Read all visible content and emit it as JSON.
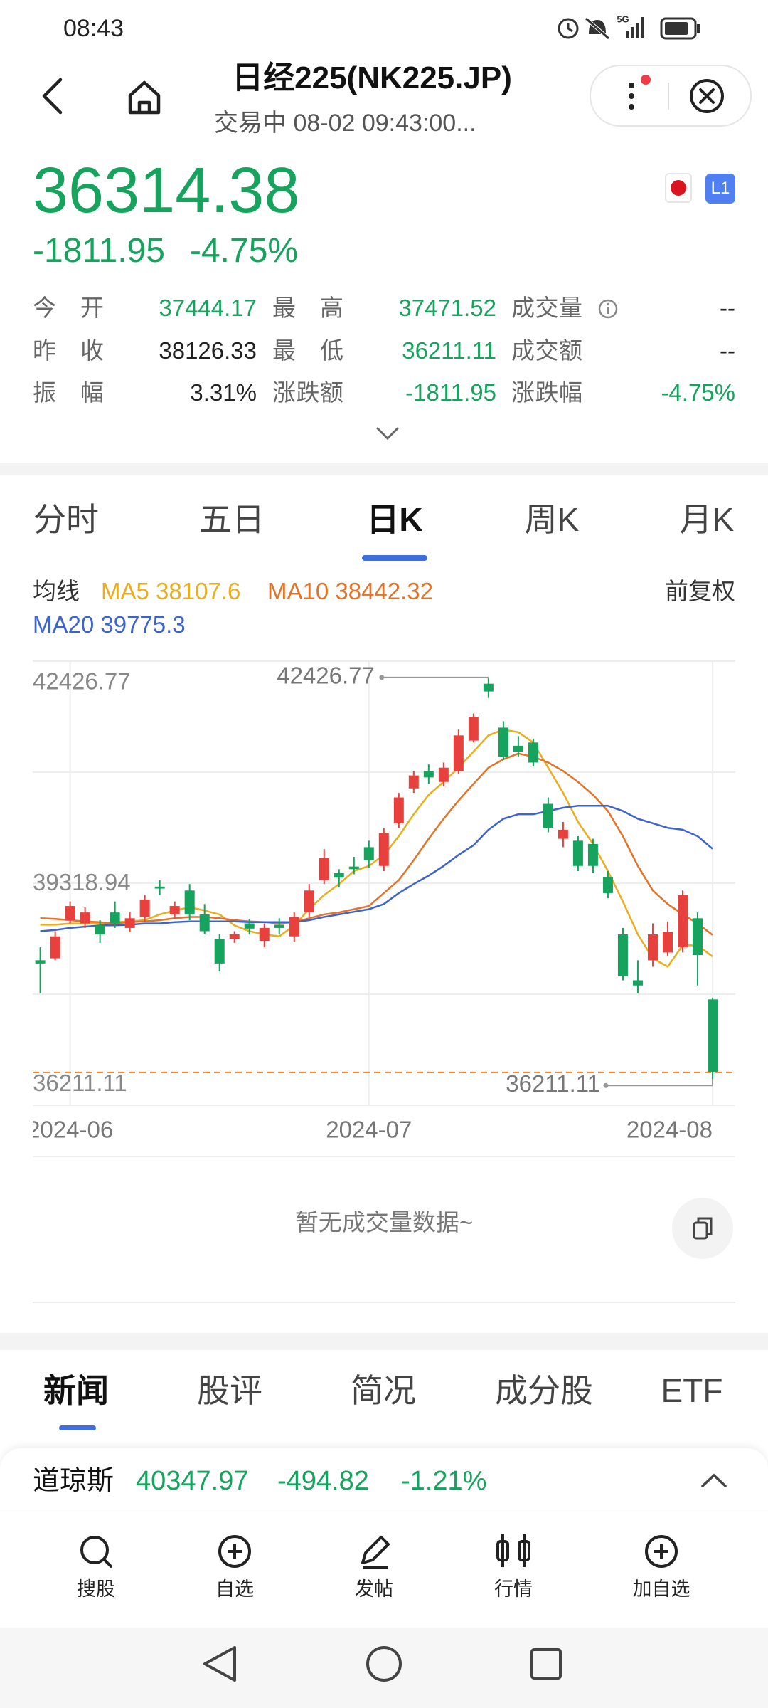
{
  "status_bar": {
    "time": "08:43",
    "network": "5G"
  },
  "header": {
    "title": "日经225(NK225.JP)",
    "subtitle": "交易中 08-02 09:43:00..."
  },
  "quote": {
    "price": "36314.38",
    "change": "-1811.95",
    "change_pct": "-4.75%",
    "badge": "L1",
    "color": "#15a35d"
  },
  "stats": [
    [
      {
        "label": "今开",
        "value": "37444.17",
        "color": "#15a35d"
      },
      {
        "label": "最高",
        "value": "37471.52",
        "color": "#15a35d"
      },
      {
        "label": "成交量",
        "value": "--",
        "color": "#222222"
      }
    ],
    [
      {
        "label": "昨收",
        "value": "38126.33",
        "color": "#222222"
      },
      {
        "label": "最低",
        "value": "36211.11",
        "color": "#15a35d"
      },
      {
        "label": "成交额",
        "value": "--",
        "color": "#222222"
      }
    ],
    [
      {
        "label": "振幅",
        "value": "3.31%",
        "color": "#222222"
      },
      {
        "label": "涨跌额",
        "value": "-1811.95",
        "color": "#15a35d"
      },
      {
        "label": "涨跌幅",
        "value": "-4.75%",
        "color": "#15a35d"
      }
    ]
  ],
  "tabs": {
    "items": [
      "分时",
      "五日",
      "日K",
      "周K",
      "月K"
    ],
    "active": 2
  },
  "ma_legend": {
    "title": "均线",
    "adjust": "前复权"
  },
  "chart_data": {
    "type": "candlestick",
    "categories": [
      null,
      null,
      "2024-06",
      null,
      null,
      null,
      null,
      null,
      null,
      null,
      null,
      null,
      null,
      null,
      null,
      null,
      null,
      null,
      null,
      null,
      null,
      null,
      "2024-07",
      null,
      null,
      null,
      null,
      null,
      null,
      null,
      null,
      null,
      null,
      null,
      null,
      null,
      null,
      null,
      null,
      null,
      null,
      null,
      null,
      null,
      null,
      "2024-08"
    ],
    "candles": [
      {
        "open": 38050,
        "high": 38250,
        "low": 37540,
        "close": 38000
      },
      {
        "open": 38080,
        "high": 38500,
        "low": 38050,
        "close": 38420
      },
      {
        "open": 38670,
        "high": 38960,
        "low": 38620,
        "close": 38890
      },
      {
        "open": 38620,
        "high": 38870,
        "low": 38550,
        "close": 38790
      },
      {
        "open": 38590,
        "high": 38670,
        "low": 38320,
        "close": 38450
      },
      {
        "open": 38790,
        "high": 38960,
        "low": 38550,
        "close": 38620
      },
      {
        "open": 38550,
        "high": 38790,
        "low": 38490,
        "close": 38700
      },
      {
        "open": 38720,
        "high": 39060,
        "low": 38650,
        "close": 38990
      },
      {
        "open": 39190,
        "high": 39290,
        "low": 39060,
        "close": 39160
      },
      {
        "open": 38760,
        "high": 38960,
        "low": 38690,
        "close": 38890
      },
      {
        "open": 39130,
        "high": 39230,
        "low": 38670,
        "close": 38760
      },
      {
        "open": 38760,
        "high": 38920,
        "low": 38450,
        "close": 38500
      },
      {
        "open": 38380,
        "high": 38450,
        "low": 37880,
        "close": 38000
      },
      {
        "open": 38380,
        "high": 38500,
        "low": 38320,
        "close": 38450
      },
      {
        "open": 38620,
        "high": 38690,
        "low": 38450,
        "close": 38540
      },
      {
        "open": 38350,
        "high": 38620,
        "low": 38250,
        "close": 38550
      },
      {
        "open": 38600,
        "high": 38700,
        "low": 38450,
        "close": 38550
      },
      {
        "open": 38420,
        "high": 38790,
        "low": 38330,
        "close": 38720
      },
      {
        "open": 38790,
        "high": 39230,
        "low": 38720,
        "close": 39130
      },
      {
        "open": 39290,
        "high": 39770,
        "low": 39230,
        "close": 39630
      },
      {
        "open": 39400,
        "high": 39460,
        "low": 39180,
        "close": 39330
      },
      {
        "open": 39500,
        "high": 39650,
        "low": 39380,
        "close": 39460
      },
      {
        "open": 39800,
        "high": 39900,
        "low": 39480,
        "close": 39600
      },
      {
        "open": 39510,
        "high": 40100,
        "low": 39430,
        "close": 40020
      },
      {
        "open": 40170,
        "high": 40640,
        "low": 40100,
        "close": 40570
      },
      {
        "open": 40710,
        "high": 40980,
        "low": 40640,
        "close": 40910
      },
      {
        "open": 40980,
        "high": 41080,
        "low": 40780,
        "close": 40880
      },
      {
        "open": 40810,
        "high": 41110,
        "low": 40740,
        "close": 41030
      },
      {
        "open": 40980,
        "high": 41620,
        "low": 40940,
        "close": 41530
      },
      {
        "open": 41450,
        "high": 41870,
        "low": 41420,
        "close": 41820
      },
      {
        "open": 42330,
        "high": 42426.77,
        "low": 42110,
        "close": 42210
      },
      {
        "open": 41650,
        "high": 41750,
        "low": 41150,
        "close": 41200
      },
      {
        "open": 41370,
        "high": 41520,
        "low": 41200,
        "close": 41280
      },
      {
        "open": 41420,
        "high": 41480,
        "low": 41050,
        "close": 41110
      },
      {
        "open": 40470,
        "high": 40570,
        "low": 40030,
        "close": 40100
      },
      {
        "open": 39930,
        "high": 40190,
        "low": 39800,
        "close": 40070
      },
      {
        "open": 39900,
        "high": 39970,
        "low": 39430,
        "close": 39510
      },
      {
        "open": 39850,
        "high": 39930,
        "low": 39400,
        "close": 39510
      },
      {
        "open": 39340,
        "high": 39430,
        "low": 39010,
        "close": 39090
      },
      {
        "open": 38450,
        "high": 38550,
        "low": 37740,
        "close": 37800
      },
      {
        "open": 37740,
        "high": 38050,
        "low": 37540,
        "close": 37660
      },
      {
        "open": 38050,
        "high": 38620,
        "low": 37950,
        "close": 38450
      },
      {
        "open": 38170,
        "high": 38650,
        "low": 38120,
        "close": 38490
      },
      {
        "open": 38250,
        "high": 39130,
        "low": 38170,
        "close": 39060
      },
      {
        "open": 38700,
        "high": 38790,
        "low": 37660,
        "close": 38130
      },
      {
        "open": 37444.17,
        "high": 37471.52,
        "low": 36211.11,
        "close": 36314.38
      }
    ],
    "series": [
      {
        "label": "MA5 38107.6",
        "color": "#e8ae1f",
        "values": [
          38600,
          38600,
          38620,
          38620,
          38620,
          38640,
          38650,
          38670,
          38760,
          38820,
          38870,
          38820,
          38760,
          38590,
          38500,
          38450,
          38420,
          38590,
          38840,
          39060,
          39230,
          39430,
          39510,
          39680,
          39970,
          40310,
          40610,
          40810,
          41030,
          41280,
          41530,
          41620,
          41580,
          41420,
          41030,
          40640,
          40190,
          39850,
          39430,
          38960,
          38450,
          38080,
          37950,
          38280,
          38280,
          38107.6
        ]
      },
      {
        "label": "MA10 38442.32",
        "color": "#e2742a",
        "values": [
          38700,
          38690,
          38670,
          38650,
          38640,
          38620,
          38640,
          38650,
          38670,
          38700,
          38720,
          38720,
          38700,
          38670,
          38650,
          38640,
          38620,
          38640,
          38700,
          38760,
          38790,
          38840,
          38890,
          39090,
          39290,
          39600,
          39930,
          40240,
          40520,
          40780,
          41030,
          41160,
          41250,
          41200,
          41110,
          40980,
          40810,
          40610,
          40360,
          39970,
          39510,
          39130,
          38920,
          38760,
          38620,
          38442.32
        ]
      },
      {
        "label": "MA20 39775.3",
        "color": "#3d63cf",
        "values": [
          38500,
          38520,
          38550,
          38570,
          38590,
          38590,
          38600,
          38620,
          38620,
          38640,
          38650,
          38650,
          38650,
          38650,
          38640,
          38640,
          38640,
          38640,
          38670,
          38720,
          38760,
          38800,
          38840,
          38920,
          39090,
          39230,
          39360,
          39510,
          39680,
          39830,
          40070,
          40240,
          40310,
          40310,
          40360,
          40410,
          40440,
          40440,
          40440,
          40360,
          40240,
          40170,
          40100,
          40070,
          39970,
          39775.3
        ]
      }
    ],
    "ylim": [
      35807,
      42679
    ],
    "yticks": [
      42426.77,
      39318.94,
      36211.11
    ],
    "up_color": "#e8403c",
    "down_color": "#15a35d",
    "price_line_color": "#e8802a"
  },
  "volume": {
    "empty_text": "暂无成交量数据~"
  },
  "news_tabs": {
    "items": [
      "新闻",
      "股评",
      "简况",
      "成分股",
      "ETF"
    ],
    "active": 0
  },
  "ticker": {
    "name": "道琼斯",
    "price": "40347.97",
    "change": "-494.82",
    "change_pct": "-1.21%",
    "color": "#15a35d"
  },
  "bottom_nav": [
    "搜股",
    "自选",
    "发帖",
    "行情",
    "加自选"
  ]
}
